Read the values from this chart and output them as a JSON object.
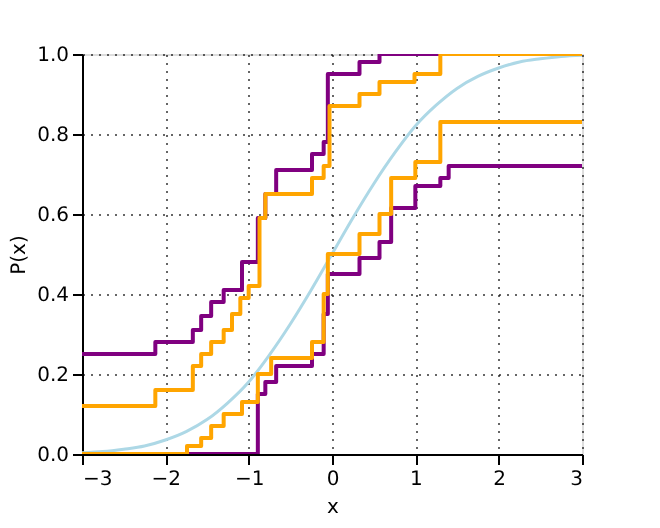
{
  "chart_data": {
    "type": "step",
    "xlabel": "x",
    "ylabel": "P(x)",
    "xlim": [
      -3,
      3
    ],
    "ylim": [
      0,
      1
    ],
    "xticks": [
      -3,
      -2,
      -1,
      0,
      1,
      2,
      3
    ],
    "yticks": [
      {
        "value": 0,
        "label": "0.0"
      },
      {
        "value": 0.2,
        "label": "0.2"
      },
      {
        "value": 0.4,
        "label": "0.4"
      },
      {
        "value": 0.6,
        "label": "0.6"
      },
      {
        "value": 0.8,
        "label": "0.8"
      },
      {
        "value": 1,
        "label": "1.0"
      }
    ],
    "grid": true,
    "series": [
      {
        "type": "line",
        "color": "#add8e6",
        "x": [
          -3,
          -2.75,
          -2.5,
          -2.25,
          -2,
          -1.75,
          -1.5,
          -1.25,
          -1,
          -0.75,
          -0.5,
          -0.25,
          0,
          0.25,
          0.5,
          0.75,
          1,
          1.25,
          1.5,
          1.75,
          2,
          2.25,
          2.5,
          2.75,
          3
        ],
        "values": [
          0.003,
          0.006,
          0.012,
          0.02,
          0.035,
          0.056,
          0.086,
          0.128,
          0.18,
          0.248,
          0.325,
          0.41,
          0.5,
          0.59,
          0.675,
          0.752,
          0.82,
          0.872,
          0.914,
          0.944,
          0.965,
          0.98,
          0.988,
          0.994,
          0.997
        ]
      },
      {
        "color": "#800080",
        "x": [
          -3,
          -2.12,
          -1.67,
          -1.57,
          -1.45,
          -1.3,
          -1.08,
          -0.89,
          -0.8,
          -0.67,
          -0.24,
          -0.1,
          -0.05,
          0.33,
          0.57,
          3
        ],
        "values": [
          0.25,
          0.28,
          0.31,
          0.345,
          0.38,
          0.41,
          0.48,
          0.59,
          0.65,
          0.71,
          0.75,
          0.78,
          0.95,
          0.98,
          1.0,
          1.0
        ]
      },
      {
        "color": "#ffa500",
        "x": [
          -3,
          -2.12,
          -1.67,
          -1.57,
          -1.45,
          -1.3,
          -1.2,
          -1.1,
          -1.0,
          -0.87,
          -0.8,
          -0.24,
          -0.1,
          -0.03,
          0.33,
          0.57,
          0.99,
          1.3,
          3
        ],
        "values": [
          0.12,
          0.16,
          0.22,
          0.25,
          0.28,
          0.31,
          0.35,
          0.39,
          0.42,
          0.59,
          0.65,
          0.69,
          0.72,
          0.87,
          0.9,
          0.93,
          0.95,
          1.0,
          1.0
        ]
      },
      {
        "color": "#800080",
        "x": [
          -3,
          -0.89,
          -0.8,
          -0.67,
          -0.24,
          -0.1,
          -0.05,
          0.33,
          0.57,
          0.71,
          1.0,
          1.3,
          1.4,
          3
        ],
        "values": [
          0,
          0.15,
          0.18,
          0.22,
          0.25,
          0.35,
          0.45,
          0.49,
          0.53,
          0.615,
          0.67,
          0.69,
          0.72,
          0.72
        ]
      },
      {
        "color": "#ffa500",
        "x": [
          -3,
          -1.74,
          -1.57,
          -1.45,
          -1.3,
          -1.08,
          -0.89,
          -0.73,
          -0.24,
          -0.1,
          -0.05,
          0.33,
          0.57,
          0.71,
          1.0,
          1.3,
          3
        ],
        "values": [
          0,
          0.02,
          0.04,
          0.07,
          0.1,
          0.13,
          0.2,
          0.24,
          0.28,
          0.4,
          0.5,
          0.55,
          0.6,
          0.69,
          0.73,
          0.83,
          0.83
        ]
      }
    ]
  }
}
